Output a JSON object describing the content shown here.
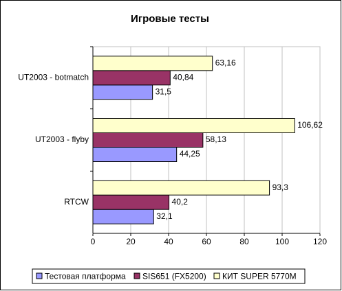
{
  "chart_data": {
    "type": "hbar",
    "title": "Игровые тесты",
    "categories": [
      "UT2003 - botmatch",
      "UT2003 - flyby",
      "RTCW"
    ],
    "series": [
      {
        "name": "Тестовая платформа",
        "color": "#9999ff",
        "values": [
          31.5,
          44.25,
          32.1
        ],
        "value_labels": [
          "31,5",
          "44,25",
          "32,1"
        ]
      },
      {
        "name": "SIS651 (FX5200)",
        "color": "#993366",
        "values": [
          40.84,
          58.13,
          40.2
        ],
        "value_labels": [
          "40,84",
          "58,13",
          "40,2"
        ]
      },
      {
        "name": "КИТ SUPER 5770M",
        "color": "#ffffcc",
        "values": [
          63.16,
          106.62,
          93.3
        ],
        "value_labels": [
          "63,16",
          "106,62",
          "93,3"
        ]
      }
    ],
    "xlim": [
      0,
      120
    ],
    "xticks": [
      0,
      20,
      40,
      60,
      80,
      100,
      120
    ],
    "grid": true,
    "legend": "bottom"
  }
}
